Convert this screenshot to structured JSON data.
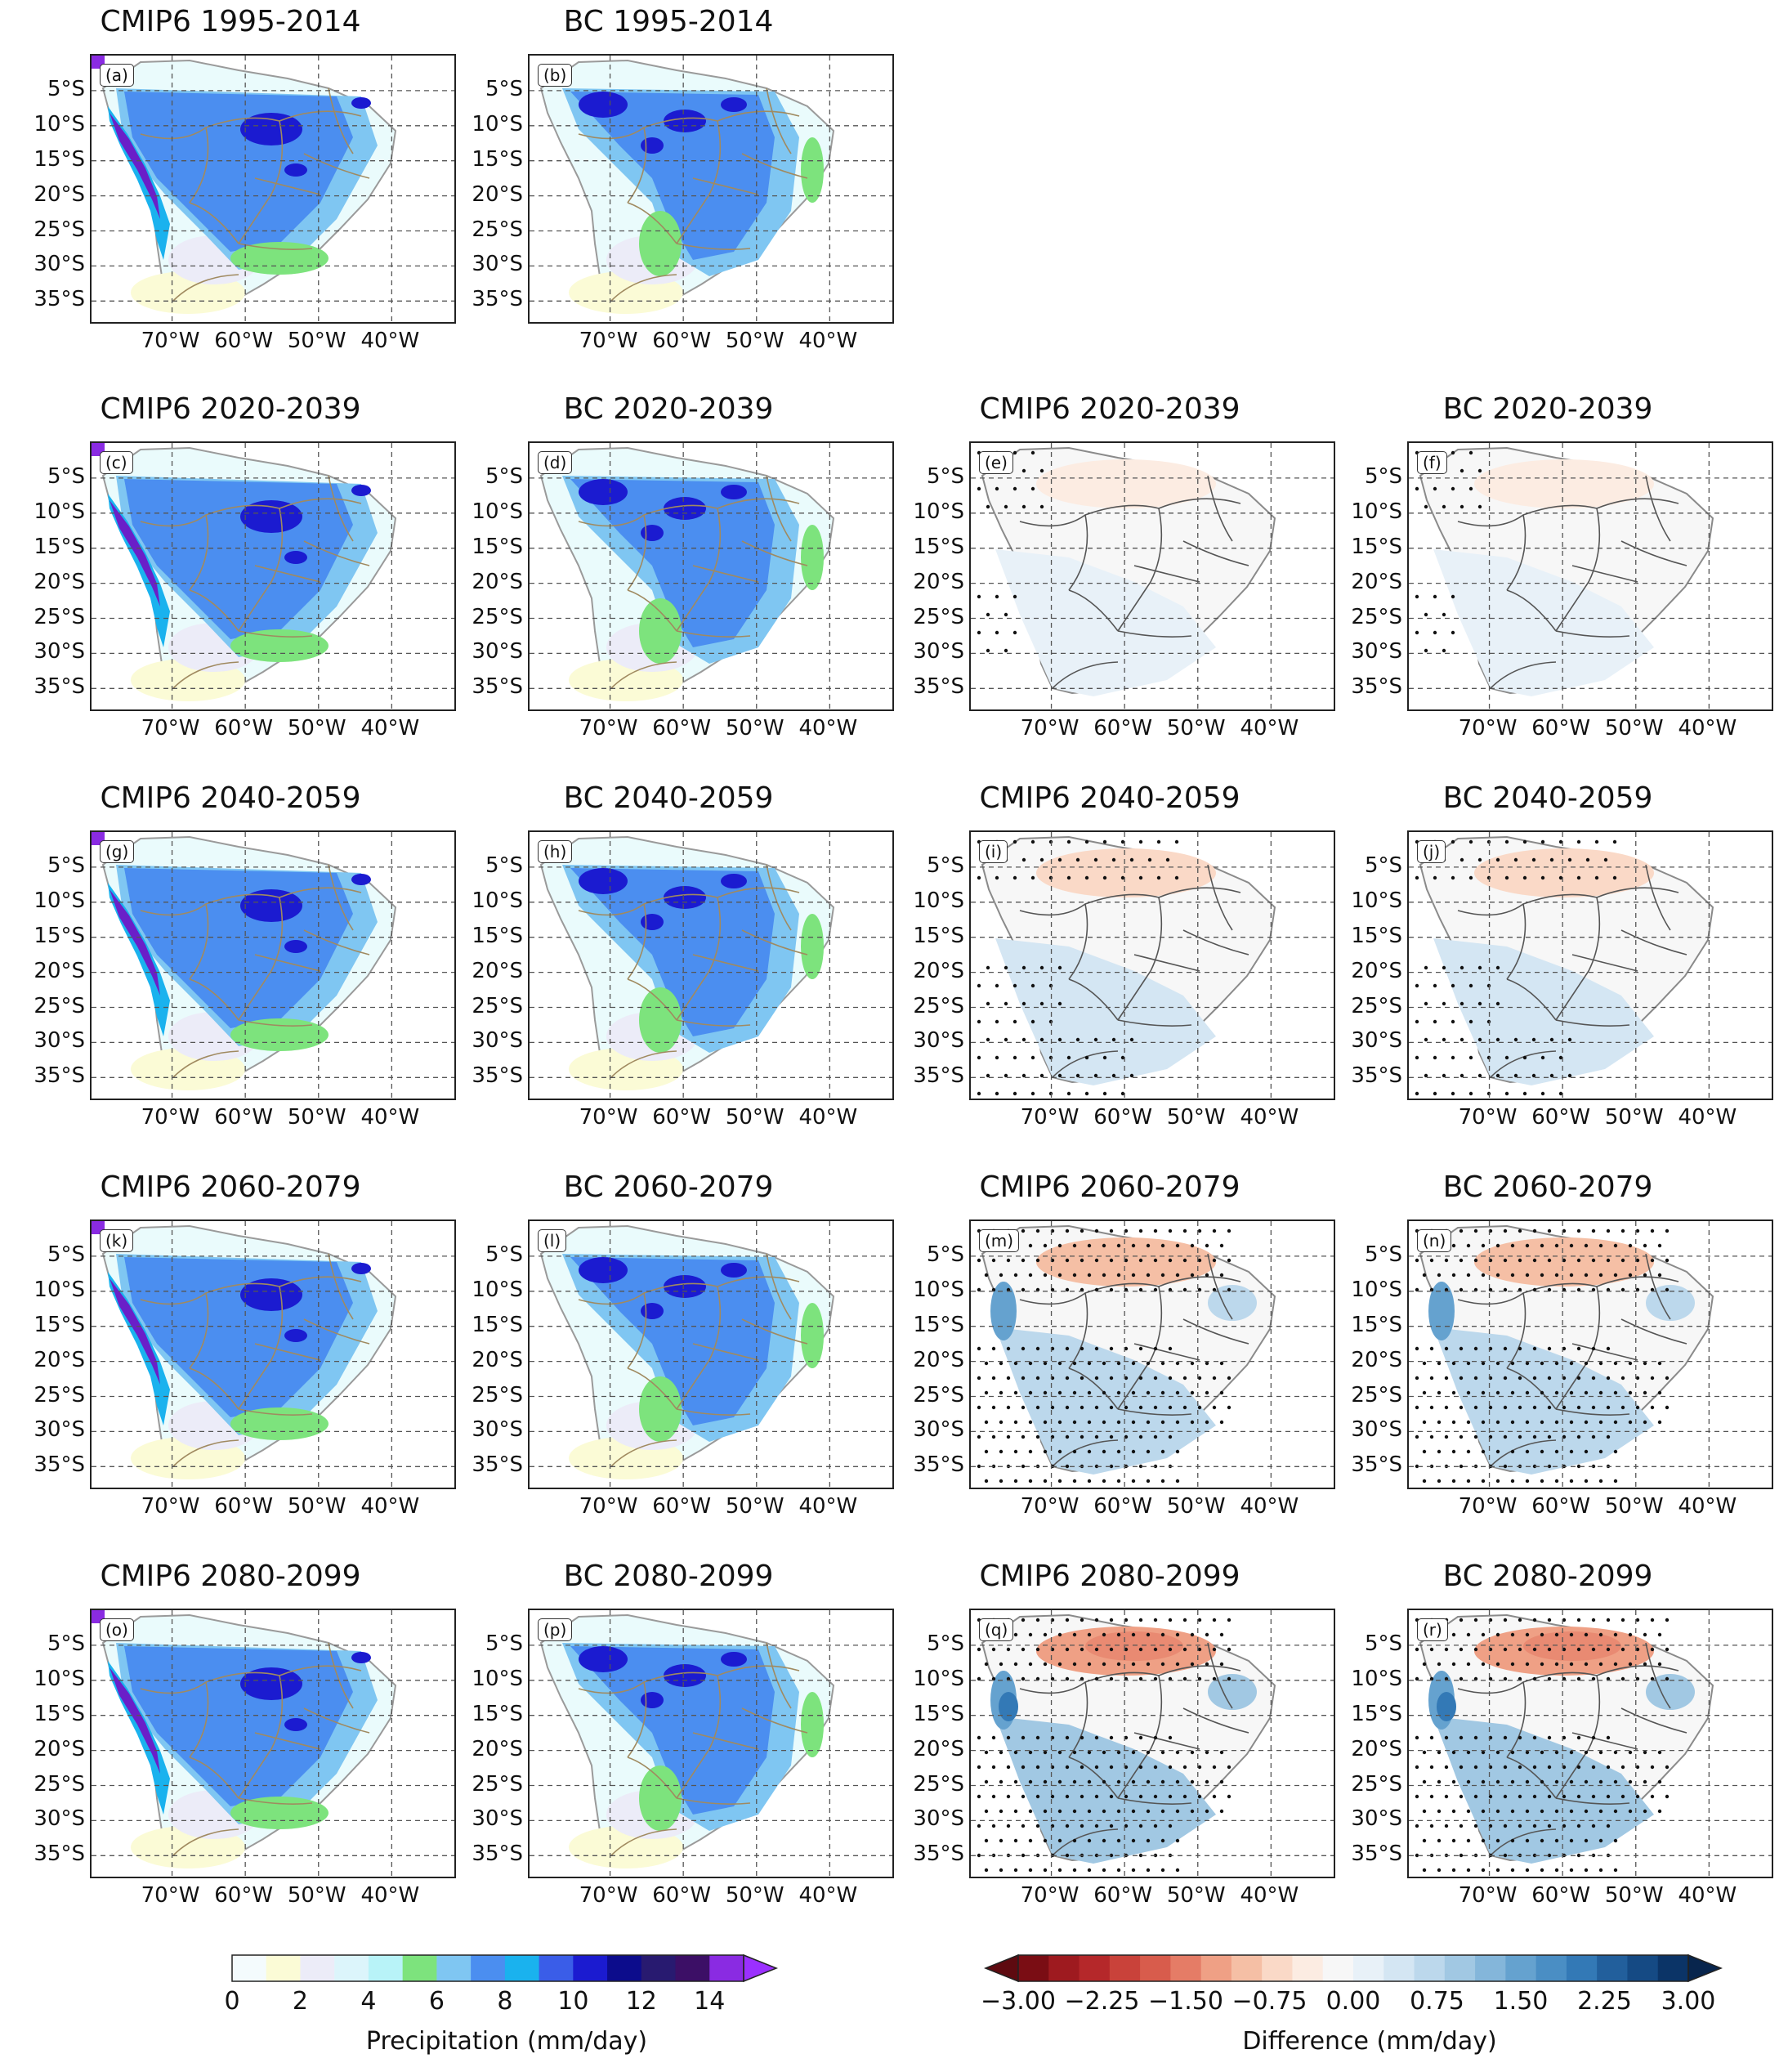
{
  "figure": {
    "lat_labels": [
      "5°S",
      "10°S",
      "15°S",
      "20°S",
      "25°S",
      "30°S",
      "35°S"
    ],
    "lon_labels": [
      "70°W",
      "60°W",
      "50°W",
      "40°W"
    ],
    "rows": [
      {
        "panels": [
          {
            "title": "CMIP6 1995-2014",
            "label": "(a)",
            "kind": "precip",
            "style": "cmip",
            "stipple": 0
          },
          {
            "title": "BC 1995-2014",
            "label": "(b)",
            "kind": "precip",
            "style": "bc",
            "stipple": 0
          }
        ]
      },
      {
        "panels": [
          {
            "title": "CMIP6 2020-2039",
            "label": "(c)",
            "kind": "precip",
            "style": "cmip",
            "stipple": 0
          },
          {
            "title": "BC 2020-2039",
            "label": "(d)",
            "kind": "precip",
            "style": "bc",
            "stipple": 0
          },
          {
            "title": "CMIP6 2020-2039",
            "label": "(e)",
            "kind": "diff",
            "intensity": 1,
            "stipple": 1
          },
          {
            "title": "BC 2020-2039",
            "label": "(f)",
            "kind": "diff",
            "intensity": 1,
            "stipple": 1
          }
        ]
      },
      {
        "panels": [
          {
            "title": "CMIP6 2040-2059",
            "label": "(g)",
            "kind": "precip",
            "style": "cmip",
            "stipple": 0
          },
          {
            "title": "BC 2040-2059",
            "label": "(h)",
            "kind": "precip",
            "style": "bc",
            "stipple": 0
          },
          {
            "title": "CMIP6 2040-2059",
            "label": "(i)",
            "kind": "diff",
            "intensity": 2,
            "stipple": 2
          },
          {
            "title": "BC 2040-2059",
            "label": "(j)",
            "kind": "diff",
            "intensity": 2,
            "stipple": 2
          }
        ]
      },
      {
        "panels": [
          {
            "title": "CMIP6 2060-2079",
            "label": "(k)",
            "kind": "precip",
            "style": "cmip",
            "stipple": 0
          },
          {
            "title": "BC 2060-2079",
            "label": "(l)",
            "kind": "precip",
            "style": "bc",
            "stipple": 0
          },
          {
            "title": "CMIP6 2060-2079",
            "label": "(m)",
            "kind": "diff",
            "intensity": 3,
            "stipple": 3
          },
          {
            "title": "BC 2060-2079",
            "label": "(n)",
            "kind": "diff",
            "intensity": 3,
            "stipple": 3
          }
        ]
      },
      {
        "panels": [
          {
            "title": "CMIP6 2080-2099",
            "label": "(o)",
            "kind": "precip",
            "style": "cmip",
            "stipple": 0
          },
          {
            "title": "BC 2080-2099",
            "label": "(p)",
            "kind": "precip",
            "style": "bc",
            "stipple": 0
          },
          {
            "title": "CMIP6 2080-2099",
            "label": "(q)",
            "kind": "diff",
            "intensity": 4,
            "stipple": 4
          },
          {
            "title": "BC 2080-2099",
            "label": "(r)",
            "kind": "diff",
            "intensity": 4,
            "stipple": 4
          }
        ]
      }
    ]
  },
  "colorbars": {
    "precip": {
      "label": "Precipitation (mm/day)",
      "ticks": [
        "0",
        "2",
        "4",
        "6",
        "8",
        "10",
        "12",
        "14"
      ],
      "colors": [
        "#f4fbfd",
        "#fbfbd6",
        "#ececf8",
        "#dcf5fb",
        "#b8f3f8",
        "#7de37d",
        "#7fc6f2",
        "#4b8ef0",
        "#1ab2ee",
        "#3a5de8",
        "#1b1bd0",
        "#0c0c8c",
        "#281a70",
        "#3c0f66",
        "#8a2be2"
      ],
      "extend_color": "#9b30ff"
    },
    "diff": {
      "label": "Difference (mm/day)",
      "ticks": [
        "−3.00",
        "−2.25",
        "−1.50",
        "−0.75",
        "0.00",
        "0.75",
        "1.50",
        "2.25",
        "3.00"
      ],
      "colors": [
        "#7a0d14",
        "#9e1a1f",
        "#b5282a",
        "#c9423a",
        "#d85c4c",
        "#e57c66",
        "#efa085",
        "#f5bfa5",
        "#fad9c7",
        "#fcece2",
        "#f7f7f7",
        "#e8f1f8",
        "#d4e6f3",
        "#bcd8ec",
        "#a1c8e3",
        "#84b6da",
        "#65a2cf",
        "#4a8ec4",
        "#3379b6",
        "#225f9c",
        "#154a84",
        "#0b3467"
      ],
      "extend_low_color": "#5e0a10",
      "extend_high_color": "#08254d"
    }
  }
}
